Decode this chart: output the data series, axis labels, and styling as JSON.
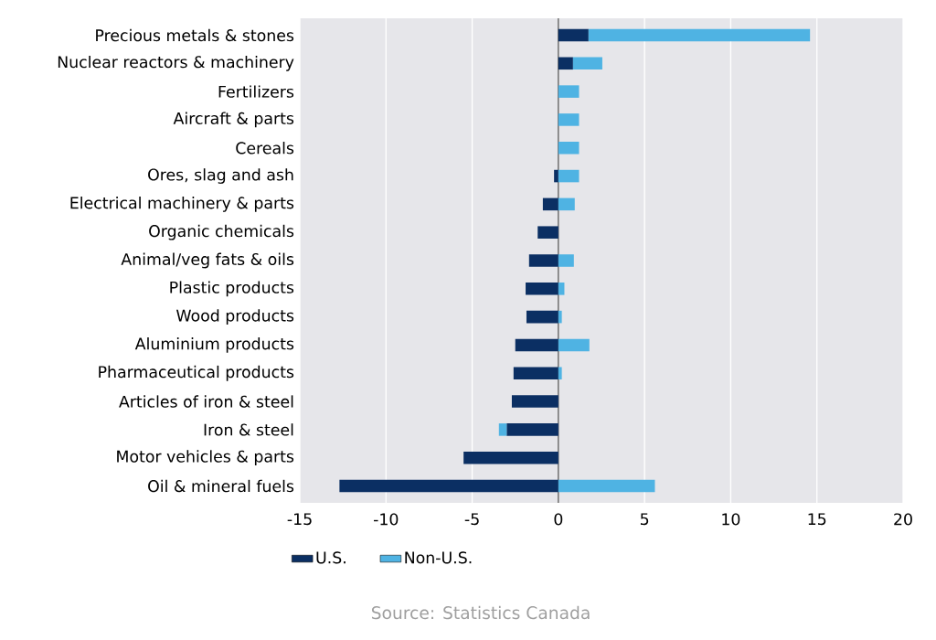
{
  "chart_data": {
    "type": "bar",
    "orientation": "horizontal",
    "stacked": true,
    "categories": [
      "Precious metals & stones",
      "Nuclear reactors & machinery",
      "Fertilizers",
      "Aircraft & parts",
      "Cereals",
      "Ores, slag and ash",
      "Electrical machinery & parts",
      "Organic chemicals",
      "Animal/veg fats & oils",
      "Plastic products",
      "Wood products",
      "Aluminium products",
      "Pharmaceutical products",
      "Articles of iron & steel",
      "Iron & steel",
      "Motor vehicles & parts",
      "Oil & mineral fuels"
    ],
    "series": [
      {
        "name": "U.S.",
        "color": "#0b2f63",
        "values": [
          1.75,
          0.85,
          0,
          0,
          0,
          -0.25,
          -0.9,
          -1.2,
          -1.7,
          -1.9,
          -1.85,
          -2.5,
          -2.6,
          -2.7,
          -3.0,
          -5.5,
          -12.7
        ]
      },
      {
        "name": "Non-U.S.",
        "color": "#4fb3e3",
        "values": [
          12.85,
          1.7,
          1.2,
          1.2,
          1.2,
          1.2,
          0.95,
          0,
          0.9,
          0.35,
          0.2,
          1.8,
          0.2,
          0,
          -0.45,
          0,
          5.6
        ]
      }
    ],
    "xlim": [
      -15,
      20
    ],
    "xticks": [
      -15,
      -10,
      -5,
      0,
      5,
      10,
      15,
      20
    ],
    "grid": "x",
    "legend": "bottom",
    "annotations": [
      "Source: Statistics Canada"
    ]
  }
}
